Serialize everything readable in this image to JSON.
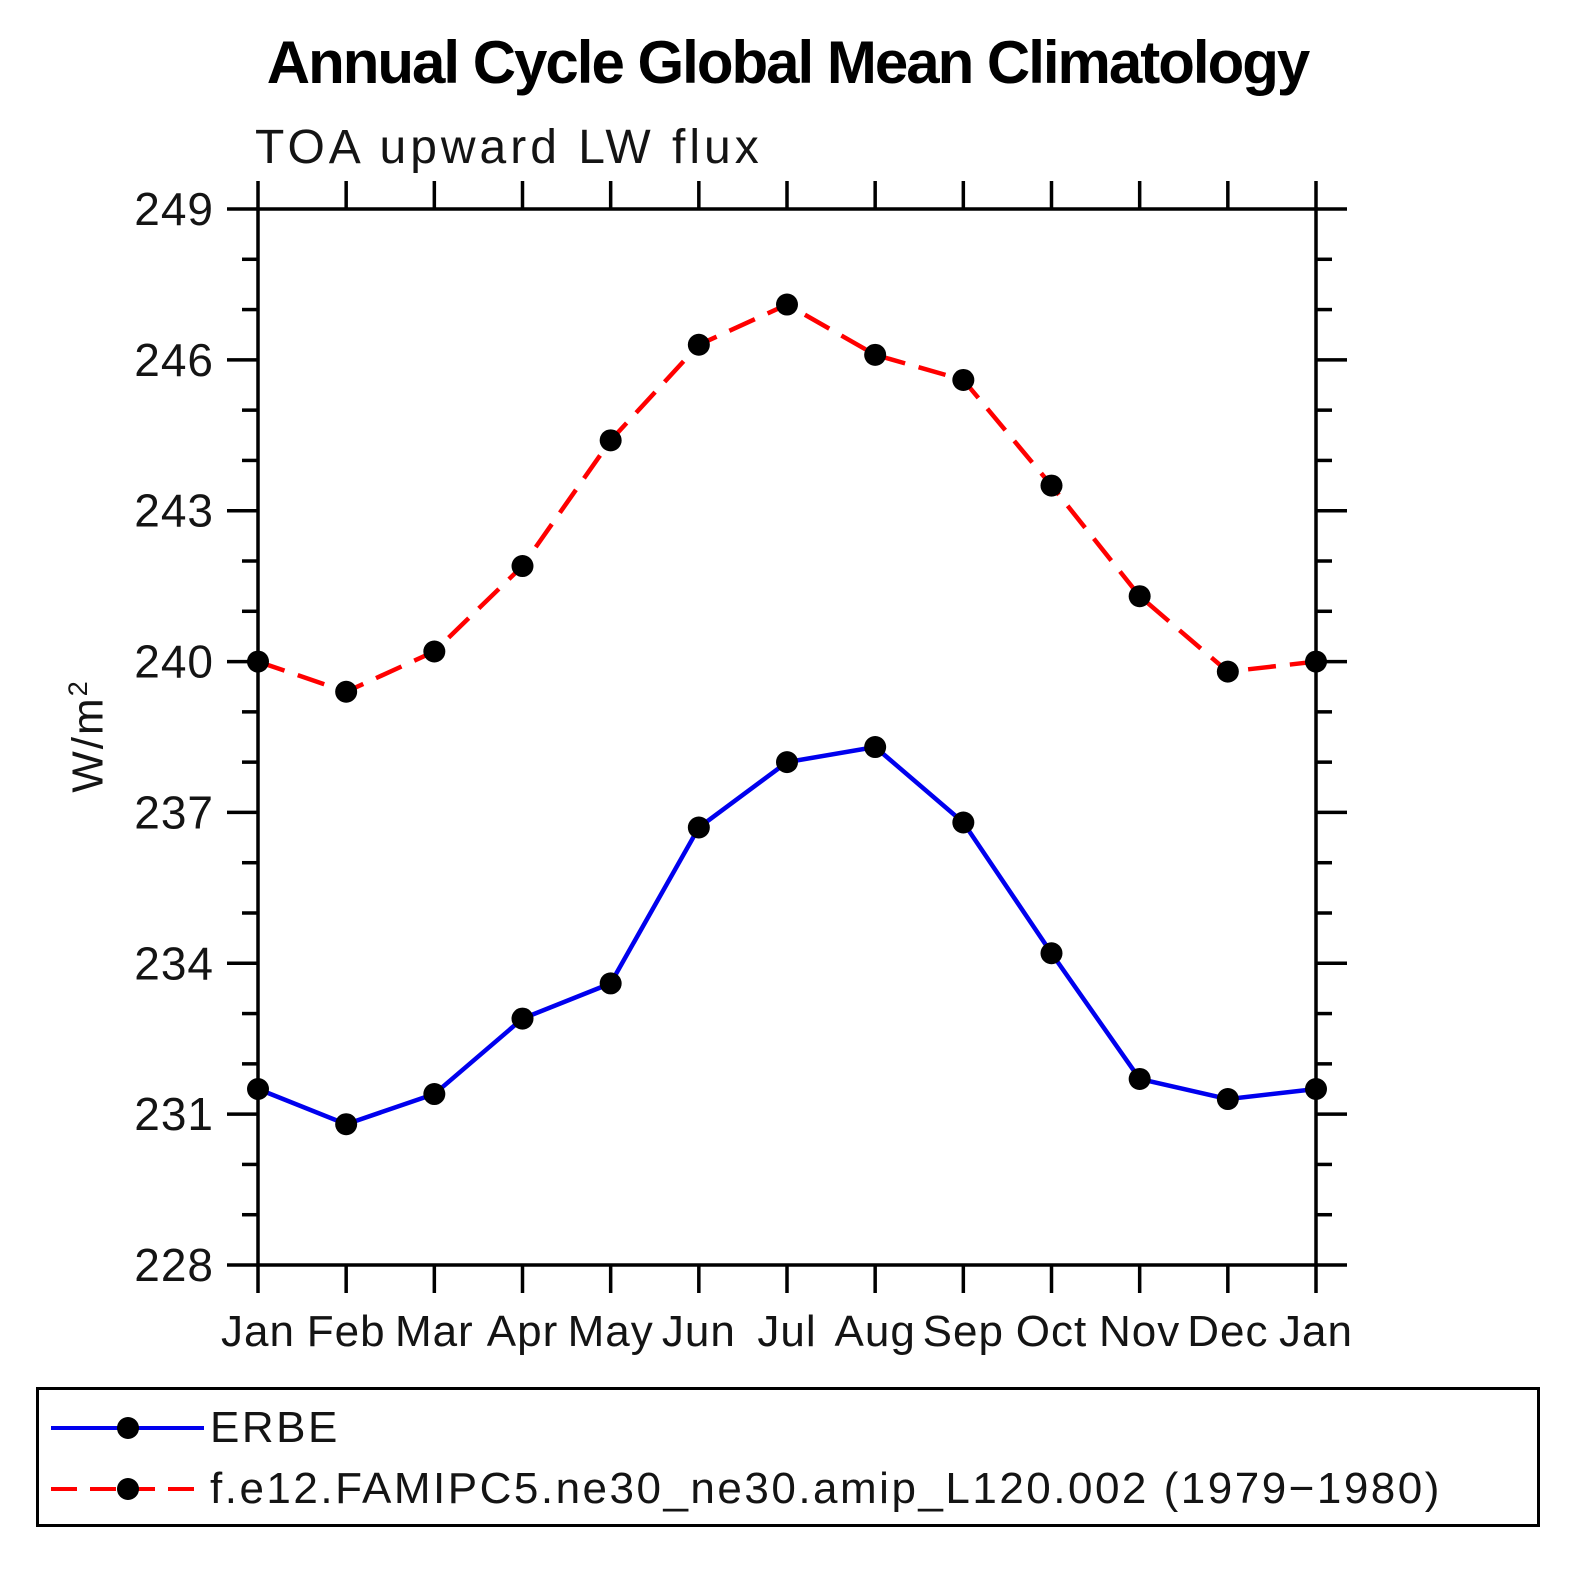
{
  "chart_data": {
    "type": "line",
    "title": "Annual Cycle Global Mean Climatology",
    "subtitle": "TOA upward LW flux",
    "ylabel": "W/m",
    "ylabel_exponent": "2",
    "xlabel": "",
    "categories": [
      "Jan",
      "Feb",
      "Mar",
      "Apr",
      "May",
      "Jun",
      "Jul",
      "Aug",
      "Sep",
      "Oct",
      "Nov",
      "Dec",
      "Jan"
    ],
    "series": [
      {
        "name": "ERBE",
        "color": "#0000ee",
        "line_style": "solid",
        "marker": "circle",
        "marker_color": "#000000",
        "values": [
          231.5,
          230.8,
          231.4,
          232.9,
          233.6,
          236.7,
          238.0,
          238.3,
          236.8,
          234.2,
          231.7,
          231.3,
          231.5
        ]
      },
      {
        "name": "f.e12.FAMIPC5.ne30_ne30.amip_L120.002 (1979−1980)",
        "color": "#ff0000",
        "line_style": "dashed",
        "marker": "circle",
        "marker_color": "#000000",
        "values": [
          240.0,
          239.4,
          240.2,
          241.9,
          244.4,
          246.3,
          247.1,
          246.1,
          245.6,
          243.5,
          241.3,
          239.8,
          240.0
        ]
      }
    ],
    "ylim": [
      228,
      249
    ],
    "y_major_ticks": [
      228,
      231,
      234,
      237,
      240,
      243,
      246,
      249
    ],
    "y_minor_tick_interval": 1,
    "grid": false,
    "legend_position": "bottom",
    "axis_color": "#000000",
    "background_color": "#ffffff"
  }
}
